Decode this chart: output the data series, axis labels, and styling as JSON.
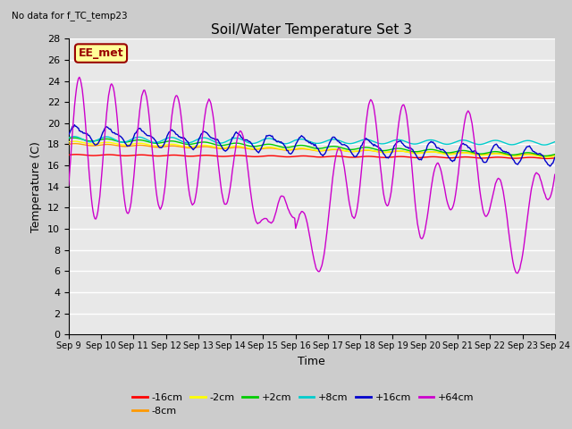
{
  "title": "Soil/Water Temperature Set 3",
  "subtitle": "No data for f_TC_temp23",
  "xlabel": "Time",
  "ylabel": "Temperature (C)",
  "ylim": [
    0,
    28
  ],
  "yticks": [
    0,
    2,
    4,
    6,
    8,
    10,
    12,
    14,
    16,
    18,
    20,
    22,
    24,
    26,
    28
  ],
  "x_labels": [
    "Sep 9",
    "Sep 10",
    "Sep 11",
    "Sep 12",
    "Sep 13",
    "Sep 14",
    "Sep 15",
    "Sep 16",
    "Sep 17",
    "Sep 18",
    "Sep 19",
    "Sep 20",
    "Sep 21",
    "Sep 22",
    "Sep 23",
    "Sep 24"
  ],
  "series_colors": {
    "-16cm": "#ff0000",
    "-8cm": "#ff9900",
    "-2cm": "#ffff00",
    "+2cm": "#00cc00",
    "+8cm": "#00cccc",
    "+16cm": "#0000cc",
    "+64cm": "#cc00cc"
  },
  "legend_annotation": "EE_met",
  "legend_annotation_bg": "#ffff99",
  "legend_annotation_border": "#990000",
  "bg_color": "#e8e8e8",
  "plot_bg_color": "#e8e8e8",
  "grid_color": "#ffffff",
  "n_points": 500
}
